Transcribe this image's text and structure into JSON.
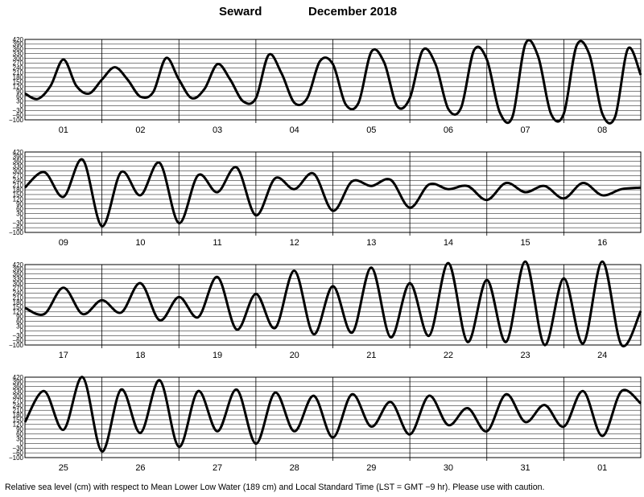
{
  "chart_data": {
    "type": "line",
    "title_station": "Seward",
    "title_month": "December   2018",
    "caption": "Relative sea level (cm) with respect to Mean Lower Low Water (189 cm) and Local Standard Time (LST = GMT −9 hr). Please use with caution.",
    "ylim": [
      -100,
      420
    ],
    "yticks": [
      "420",
      "390",
      "360",
      "330",
      "300",
      "270",
      "240",
      "210",
      "180",
      "150",
      "120",
      "90",
      "60",
      "30",
      "0",
      "−30",
      "−60",
      "−100"
    ],
    "grid": true,
    "line_color": "#000000",
    "panels": [
      {
        "day_labels": [
          "01",
          "02",
          "03",
          "04",
          "05",
          "06",
          "07",
          "08"
        ],
        "values": [
          70,
          35,
          120,
          290,
          120,
          70,
          160,
          240,
          160,
          50,
          80,
          300,
          160,
          40,
          100,
          260,
          160,
          20,
          40,
          320,
          200,
          10,
          40,
          280,
          260,
          0,
          10,
          340,
          270,
          -10,
          40,
          350,
          260,
          -30,
          -20,
          350,
          290,
          -50,
          -80,
          390,
          310,
          -60,
          -60,
          380,
          320,
          -60,
          -80,
          360,
          190
        ]
      },
      {
        "day_labels": [
          "09",
          "10",
          "11",
          "12",
          "13",
          "14",
          "15",
          "16"
        ],
        "values": [
          190,
          290,
          130,
          370,
          -60,
          290,
          140,
          350,
          -40,
          270,
          160,
          320,
          10,
          250,
          180,
          280,
          40,
          230,
          200,
          240,
          60,
          210,
          180,
          200,
          110,
          220,
          160,
          200,
          120,
          220,
          140,
          180,
          190
        ]
      },
      {
        "day_labels": [
          "17",
          "18",
          "19",
          "20",
          "21",
          "22",
          "23",
          "24"
        ],
        "values": [
          140,
          100,
          270,
          100,
          190,
          110,
          300,
          60,
          210,
          80,
          340,
          0,
          230,
          10,
          380,
          -30,
          280,
          -20,
          400,
          -50,
          300,
          -40,
          430,
          -80,
          320,
          -80,
          440,
          -100,
          330,
          -90,
          440,
          -100,
          120
        ]
      },
      {
        "day_labels": [
          "25",
          "26",
          "27",
          "28",
          "29",
          "30",
          "31",
          "01"
        ],
        "values": [
          130,
          330,
          80,
          420,
          -60,
          340,
          60,
          400,
          -30,
          330,
          70,
          340,
          -10,
          320,
          70,
          300,
          30,
          310,
          100,
          260,
          50,
          300,
          110,
          220,
          70,
          310,
          130,
          240,
          100,
          330,
          40,
          330,
          250
        ]
      }
    ]
  }
}
